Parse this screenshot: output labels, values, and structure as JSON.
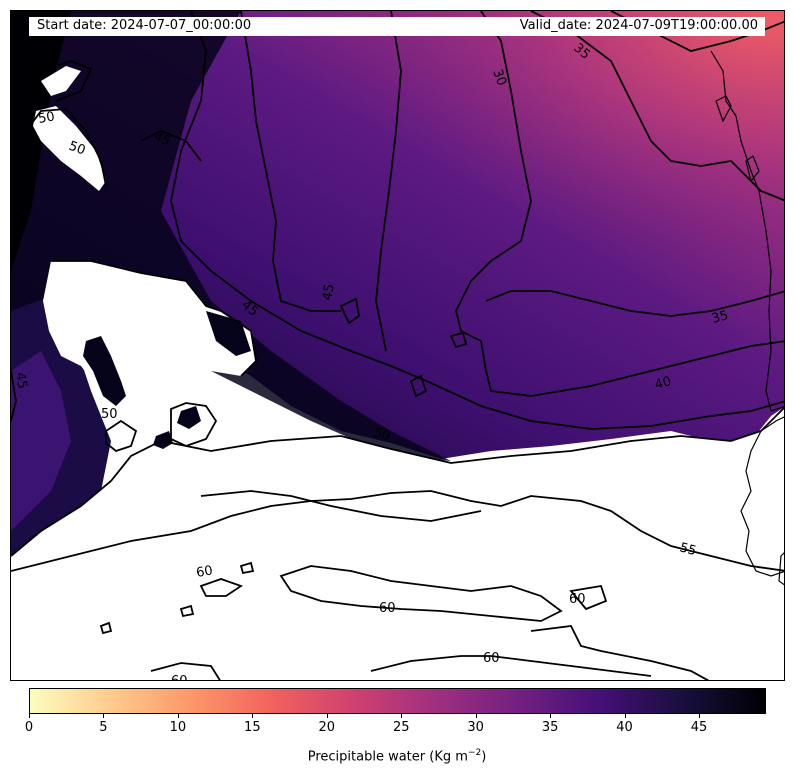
{
  "header": {
    "start_date": "Start date: 2024-07-07_00:00:00",
    "valid_date": "Valid_date: 2024-07-09T19:00:00.00"
  },
  "colorbar": {
    "title": "Precipitable water (Kg m",
    "title_superscript": "−2",
    "title_close": ")",
    "ticks": [
      "0",
      "5",
      "10",
      "15",
      "20",
      "25",
      "30",
      "35",
      "40",
      "45"
    ],
    "min": 0,
    "max": 49.5,
    "colormap": "magma_r",
    "colors": [
      "#fcfdbf",
      "#feca8d",
      "#fd9668",
      "#f1605d",
      "#cd4071",
      "#9e2f7f",
      "#721f81",
      "#440f76",
      "#180f3d",
      "#000004"
    ]
  },
  "contour_labels": [
    "30",
    "35",
    "35",
    "40",
    "45",
    "45",
    "45",
    "45",
    "50",
    "50",
    "50",
    "50",
    "55",
    "60",
    "60",
    "60",
    "60",
    "60"
  ]
}
